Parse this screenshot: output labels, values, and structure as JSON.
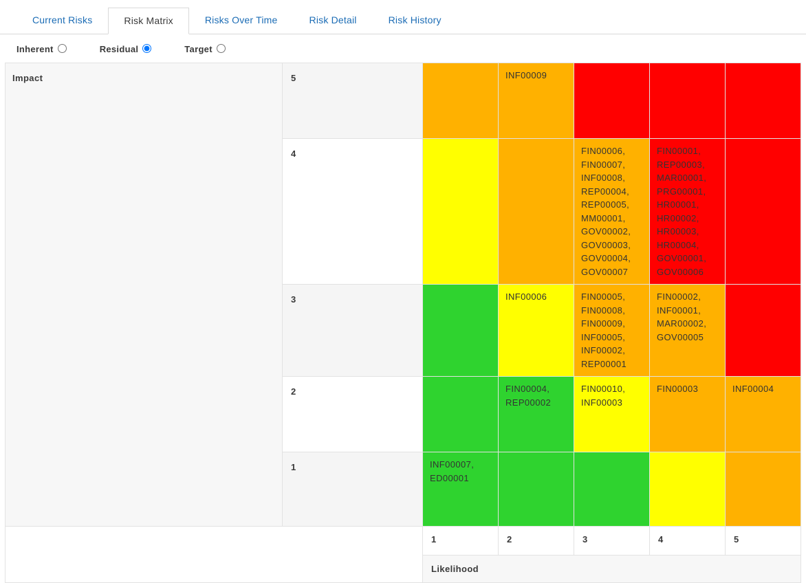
{
  "tabs": [
    {
      "label": "Current Risks",
      "active": false
    },
    {
      "label": "Risk Matrix",
      "active": true
    },
    {
      "label": "Risks Over Time",
      "active": false
    },
    {
      "label": "Risk Detail",
      "active": false
    },
    {
      "label": "Risk History",
      "active": false
    }
  ],
  "radios": [
    {
      "label": "Inherent",
      "selected": false
    },
    {
      "label": "Residual",
      "selected": true
    },
    {
      "label": "Target",
      "selected": false
    }
  ],
  "matrix": {
    "impact_label": "Impact",
    "likelihood_label": "Likelihood",
    "likelihood_levels": [
      "1",
      "2",
      "3",
      "4",
      "5"
    ],
    "colors": {
      "green": "#2fd32f",
      "yellow": "#ffff00",
      "orange": "#ffb100",
      "red": "#ff0000"
    },
    "rows": [
      {
        "impact": "5",
        "cells": [
          {
            "color": "orange",
            "risks": []
          },
          {
            "color": "orange",
            "risks": [
              "INF00009"
            ]
          },
          {
            "color": "red",
            "risks": []
          },
          {
            "color": "red",
            "risks": []
          },
          {
            "color": "red",
            "risks": []
          }
        ]
      },
      {
        "impact": "4",
        "cells": [
          {
            "color": "yellow",
            "risks": []
          },
          {
            "color": "orange",
            "risks": []
          },
          {
            "color": "orange",
            "risks": [
              "FIN00006",
              "FIN00007",
              "INF00008",
              "REP00004",
              "REP00005",
              "MM00001",
              "GOV00002",
              "GOV00003",
              "GOV00004",
              "GOV00007"
            ]
          },
          {
            "color": "red",
            "risks": [
              "FIN00001",
              "REP00003",
              "MAR00001",
              "PRG00001",
              "HR00001",
              "HR00002",
              "HR00003",
              "HR00004",
              "GOV00001",
              "GOV00006"
            ]
          },
          {
            "color": "red",
            "risks": []
          }
        ]
      },
      {
        "impact": "3",
        "cells": [
          {
            "color": "green",
            "risks": []
          },
          {
            "color": "yellow",
            "risks": [
              "INF00006"
            ]
          },
          {
            "color": "orange",
            "risks": [
              "FIN00005",
              "FIN00008",
              "FIN00009",
              "INF00005",
              "INF00002",
              "REP00001"
            ]
          },
          {
            "color": "orange",
            "risks": [
              "FIN00002",
              "INF00001",
              "MAR00002",
              "GOV00005"
            ]
          },
          {
            "color": "red",
            "risks": []
          }
        ]
      },
      {
        "impact": "2",
        "cells": [
          {
            "color": "green",
            "risks": []
          },
          {
            "color": "green",
            "risks": [
              "FIN00004",
              "REP00002"
            ]
          },
          {
            "color": "yellow",
            "risks": [
              "FIN00010",
              "INF00003"
            ]
          },
          {
            "color": "orange",
            "risks": [
              "FIN00003"
            ]
          },
          {
            "color": "orange",
            "risks": [
              "INF00004"
            ]
          }
        ]
      },
      {
        "impact": "1",
        "cells": [
          {
            "color": "green",
            "risks": [
              "INF00007",
              "ED00001"
            ]
          },
          {
            "color": "green",
            "risks": []
          },
          {
            "color": "green",
            "risks": []
          },
          {
            "color": "yellow",
            "risks": []
          },
          {
            "color": "orange",
            "risks": []
          }
        ]
      }
    ]
  }
}
